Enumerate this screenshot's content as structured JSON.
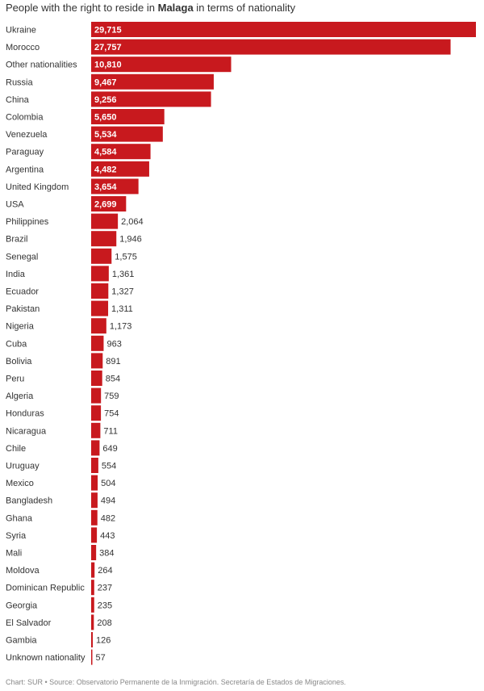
{
  "title": {
    "prefix": "People with the right to reside in ",
    "bold": "Malaga",
    "suffix": " in terms of nationality"
  },
  "footer": {
    "credit": "Chart: SUR",
    "separator": " • ",
    "source": "Source: Observatorio Permanente de la Inmigración. Secretaría de Estados de Migraciones."
  },
  "colors": {
    "bar": "#c8191e"
  },
  "chart_data": {
    "type": "bar",
    "orientation": "horizontal",
    "categories": [
      "Ukraine",
      "Morocco",
      "Other nationalities",
      "Russia",
      "China",
      "Colombia",
      "Venezuela",
      "Paraguay",
      "Argentina",
      "United Kingdom",
      "USA",
      "Philippines",
      "Brazil",
      "Senegal",
      "India",
      "Ecuador",
      "Pakistan",
      "Nigeria",
      "Cuba",
      "Bolivia",
      "Peru",
      "Algeria",
      "Honduras",
      "Nicaragua",
      "Chile",
      "Uruguay",
      "Mexico",
      "Bangladesh",
      "Ghana",
      "Syria",
      "Mali",
      "Moldova",
      "Dominican Republic",
      "Georgia",
      "El Salvador",
      "Gambia",
      "Unknown nationality"
    ],
    "values": [
      29715,
      27757,
      10810,
      9467,
      9256,
      5650,
      5534,
      4584,
      4482,
      3654,
      2699,
      2064,
      1946,
      1575,
      1361,
      1327,
      1311,
      1173,
      963,
      891,
      854,
      759,
      754,
      711,
      649,
      554,
      504,
      494,
      482,
      443,
      384,
      264,
      237,
      235,
      208,
      126,
      57
    ],
    "value_labels": [
      "29,715",
      "27,757",
      "10,810",
      "9,467",
      "9,256",
      "5,650",
      "5,534",
      "4,584",
      "4,482",
      "3,654",
      "2,699",
      "2,064",
      "1,946",
      "1,575",
      "1,361",
      "1,327",
      "1,311",
      "1,173",
      "963",
      "891",
      "854",
      "759",
      "754",
      "711",
      "649",
      "554",
      "504",
      "494",
      "482",
      "443",
      "384",
      "264",
      "237",
      "235",
      "208",
      "126",
      "57"
    ],
    "xlim": [
      0,
      29715
    ],
    "grid": false,
    "legend": "none"
  }
}
